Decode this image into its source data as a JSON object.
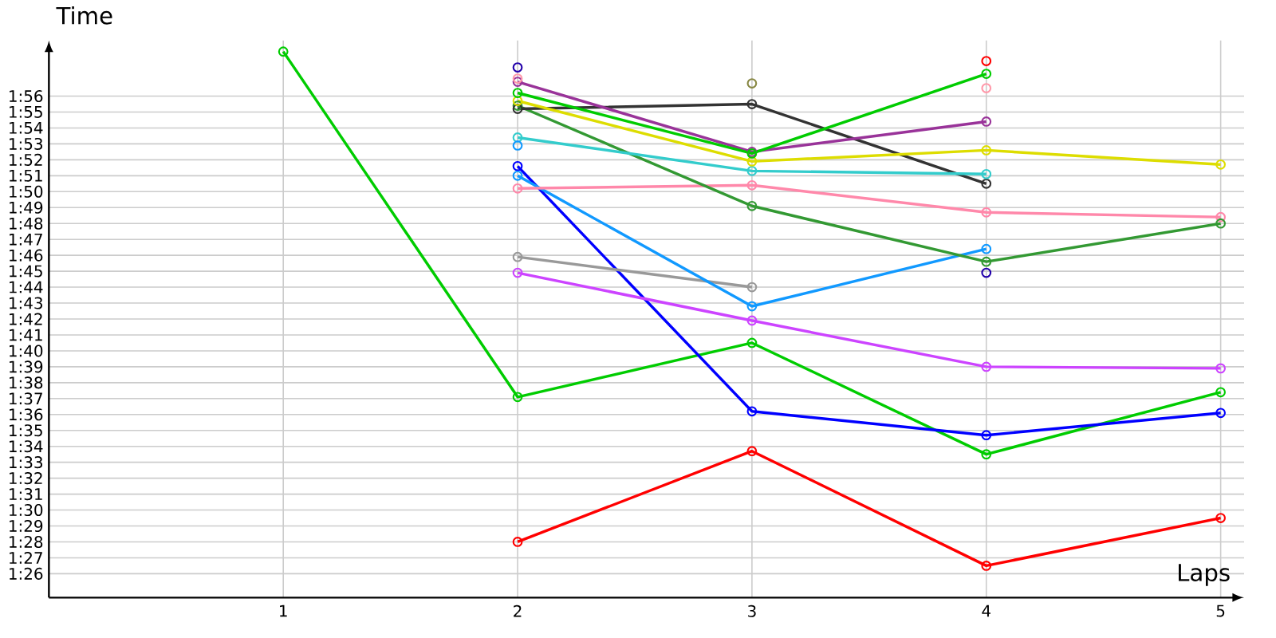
{
  "chart_data": {
    "type": "line",
    "xlabel": "Laps",
    "ylabel": "Time",
    "x": [
      1,
      2,
      3,
      4,
      5
    ],
    "xlim": [
      0,
      5.1
    ],
    "xticks": [
      1,
      2,
      3,
      4,
      5
    ],
    "ylim": [
      84.5,
      119.5
    ],
    "yticks": [
      {
        "value": 86,
        "label": "1:26"
      },
      {
        "value": 87,
        "label": "1:27"
      },
      {
        "value": 88,
        "label": "1:28"
      },
      {
        "value": 89,
        "label": "1:29"
      },
      {
        "value": 90,
        "label": "1:30"
      },
      {
        "value": 91,
        "label": "1:31"
      },
      {
        "value": 92,
        "label": "1:32"
      },
      {
        "value": 93,
        "label": "1:33"
      },
      {
        "value": 94,
        "label": "1:34"
      },
      {
        "value": 95,
        "label": "1:35"
      },
      {
        "value": 96,
        "label": "1:36"
      },
      {
        "value": 97,
        "label": "1:37"
      },
      {
        "value": 98,
        "label": "1:38"
      },
      {
        "value": 99,
        "label": "1:39"
      },
      {
        "value": 100,
        "label": "1:40"
      },
      {
        "value": 101,
        "label": "1:41"
      },
      {
        "value": 102,
        "label": "1:42"
      },
      {
        "value": 103,
        "label": "1:43"
      },
      {
        "value": 104,
        "label": "1:44"
      },
      {
        "value": 105,
        "label": "1:45"
      },
      {
        "value": 106,
        "label": "1:46"
      },
      {
        "value": 107,
        "label": "1:47"
      },
      {
        "value": 108,
        "label": "1:48"
      },
      {
        "value": 109,
        "label": "1:49"
      },
      {
        "value": 110,
        "label": "1:50"
      },
      {
        "value": 111,
        "label": "1:51"
      },
      {
        "value": 112,
        "label": "1:52"
      },
      {
        "value": 113,
        "label": "1:53"
      },
      {
        "value": 114,
        "label": "1:54"
      },
      {
        "value": 115,
        "label": "1:55"
      },
      {
        "value": 116,
        "label": "1:56"
      }
    ],
    "grid": true,
    "marker": "circle",
    "line_style": "solid",
    "series": [
      {
        "color": "#ff0000",
        "values": [
          null,
          88.0,
          93.7,
          86.5,
          89.5
        ]
      },
      {
        "color": "#00cc00",
        "values": [
          118.8,
          97.1,
          100.5,
          93.5,
          97.4
        ]
      },
      {
        "color": "#0000ff",
        "values": [
          null,
          111.6,
          96.2,
          94.7,
          96.1
        ]
      },
      {
        "color": "#cc44ff",
        "values": [
          null,
          104.9,
          101.9,
          99.0,
          98.9
        ]
      },
      {
        "color": "#999999",
        "values": [
          null,
          105.9,
          104.0,
          null,
          null
        ]
      },
      {
        "color": "#1199ff",
        "values": [
          null,
          111.0,
          102.8,
          106.4,
          null
        ]
      },
      {
        "color": "#ff88aa",
        "values": [
          null,
          110.2,
          110.4,
          108.7,
          108.4
        ]
      },
      {
        "color": "#339933",
        "values": [
          null,
          115.4,
          109.1,
          105.6,
          108.0
        ]
      },
      {
        "color": "#333333",
        "values": [
          null,
          115.2,
          115.5,
          110.5,
          null
        ]
      },
      {
        "color": "#33cccc",
        "values": [
          null,
          113.4,
          111.3,
          111.1,
          null
        ]
      },
      {
        "color": "#dddd00",
        "values": [
          null,
          115.7,
          111.9,
          112.6,
          111.7
        ]
      },
      {
        "color": "#993399",
        "values": [
          null,
          116.9,
          112.5,
          114.4,
          null
        ]
      },
      {
        "color": "#00cc00",
        "values": [
          null,
          116.2,
          112.4,
          117.4,
          null
        ]
      },
      {
        "color": "#888844",
        "values": [
          null,
          null,
          116.8,
          null,
          null
        ]
      },
      {
        "color": "#ff0000",
        "values": [
          null,
          null,
          null,
          118.2,
          null
        ]
      },
      {
        "type": "scatter",
        "color": "#ff99aa",
        "values": [
          null,
          117.1,
          null,
          116.5,
          null
        ]
      },
      {
        "type": "scatter",
        "color": "#2200aa",
        "values": [
          null,
          117.8,
          null,
          104.9,
          null
        ]
      },
      {
        "color": "#1199ff",
        "values": [
          null,
          112.9,
          null,
          null,
          null
        ]
      }
    ]
  }
}
